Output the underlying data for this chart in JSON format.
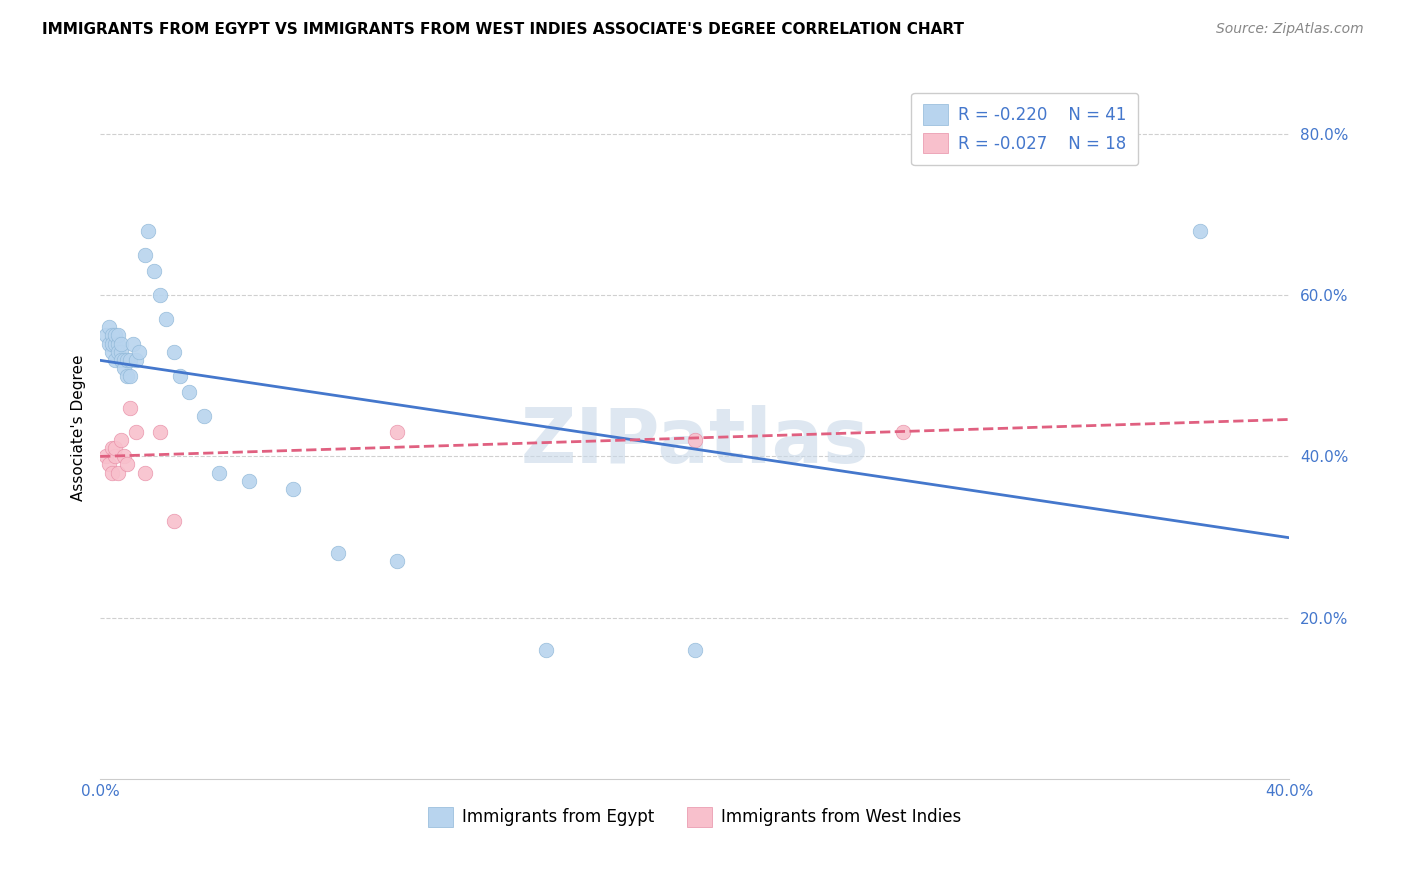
{
  "title": "IMMIGRANTS FROM EGYPT VS IMMIGRANTS FROM WEST INDIES ASSOCIATE'S DEGREE CORRELATION CHART",
  "source": "Source: ZipAtlas.com",
  "ylabel": "Associate's Degree",
  "xlim": [
    0.0,
    0.4
  ],
  "ylim": [
    0.0,
    0.87
  ],
  "yticks": [
    0.2,
    0.4,
    0.6,
    0.8
  ],
  "xtick_left": 0.0,
  "xtick_right": 0.4,
  "grid_color": "#d0d0d0",
  "background_color": "#ffffff",
  "series": [
    {
      "name": "Immigrants from Egypt",
      "color": "#b8d4ee",
      "edge_color": "#90b8d8",
      "R": -0.22,
      "N": 41,
      "line_color": "#4477cc",
      "line_style": "solid",
      "x": [
        0.002,
        0.003,
        0.003,
        0.004,
        0.004,
        0.004,
        0.005,
        0.005,
        0.005,
        0.006,
        0.006,
        0.006,
        0.007,
        0.007,
        0.007,
        0.008,
        0.008,
        0.009,
        0.009,
        0.01,
        0.01,
        0.011,
        0.012,
        0.013,
        0.015,
        0.016,
        0.018,
        0.02,
        0.022,
        0.025,
        0.027,
        0.03,
        0.035,
        0.04,
        0.05,
        0.065,
        0.08,
        0.1,
        0.15,
        0.2,
        0.37
      ],
      "y": [
        0.55,
        0.54,
        0.56,
        0.55,
        0.53,
        0.54,
        0.52,
        0.54,
        0.55,
        0.54,
        0.53,
        0.55,
        0.53,
        0.54,
        0.52,
        0.52,
        0.51,
        0.5,
        0.52,
        0.52,
        0.5,
        0.54,
        0.52,
        0.53,
        0.65,
        0.68,
        0.63,
        0.6,
        0.57,
        0.53,
        0.5,
        0.48,
        0.45,
        0.38,
        0.37,
        0.36,
        0.28,
        0.27,
        0.16,
        0.16,
        0.68
      ]
    },
    {
      "name": "Immigrants from West Indies",
      "color": "#f8c0cc",
      "edge_color": "#e890a8",
      "R": -0.027,
      "N": 18,
      "line_color": "#e06080",
      "line_style": "dashed",
      "x": [
        0.002,
        0.003,
        0.004,
        0.004,
        0.005,
        0.005,
        0.006,
        0.007,
        0.008,
        0.009,
        0.01,
        0.012,
        0.015,
        0.02,
        0.025,
        0.1,
        0.2,
        0.27
      ],
      "y": [
        0.4,
        0.39,
        0.41,
        0.38,
        0.4,
        0.41,
        0.38,
        0.42,
        0.4,
        0.39,
        0.46,
        0.43,
        0.38,
        0.43,
        0.32,
        0.43,
        0.42,
        0.43
      ]
    }
  ],
  "title_fontsize": 11,
  "axis_label_fontsize": 11,
  "tick_fontsize": 11,
  "source_fontsize": 10,
  "legend_fontsize": 12,
  "marker_size": 110,
  "watermark_text": "ZIPatlas",
  "watermark_color": "#c8d8e8",
  "watermark_fontsize": 55,
  "tick_color": "#4477cc"
}
